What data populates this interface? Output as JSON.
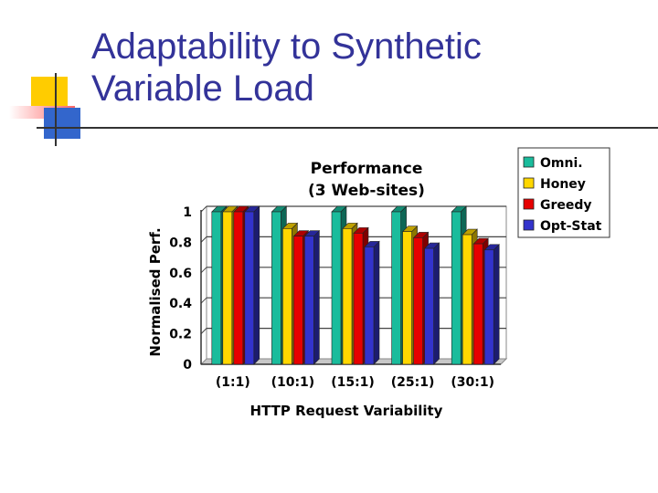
{
  "slide": {
    "title_line1": "Adaptability to Synthetic",
    "title_line2": "Variable Load"
  },
  "colors": {
    "title": "#333399",
    "bar_yellow": "#FFCC00",
    "bar_red": "#FF3333",
    "bar_blue": "#3333CC",
    "rule": "#555555"
  },
  "chart_data": {
    "type": "bar",
    "title": "Performance",
    "subtitle": "(3 Web-sites)",
    "xlabel": "HTTP Request Variability",
    "ylabel": "Normalised Perf.",
    "categories": [
      "(1:1)",
      "(10:1)",
      "(15:1)",
      "(25:1)",
      "(30:1)"
    ],
    "series": [
      {
        "name": "Omni.",
        "color": "#1ABC9C",
        "values": [
          1.0,
          1.0,
          1.0,
          1.0,
          1.0
        ]
      },
      {
        "name": "Honey",
        "color": "#FFD700",
        "values": [
          1.0,
          0.89,
          0.89,
          0.87,
          0.85
        ]
      },
      {
        "name": "Greedy",
        "color": "#E60000",
        "values": [
          1.0,
          0.84,
          0.86,
          0.83,
          0.79
        ]
      },
      {
        "name": "Opt-Stat",
        "color": "#3333CC",
        "values": [
          1.0,
          0.84,
          0.77,
          0.76,
          0.75
        ]
      }
    ],
    "ylim": [
      0,
      1
    ],
    "yticks": [
      "0",
      "0.2",
      "0.4",
      "0.6",
      "0.8",
      "1"
    ],
    "legend_position": "top-right"
  }
}
